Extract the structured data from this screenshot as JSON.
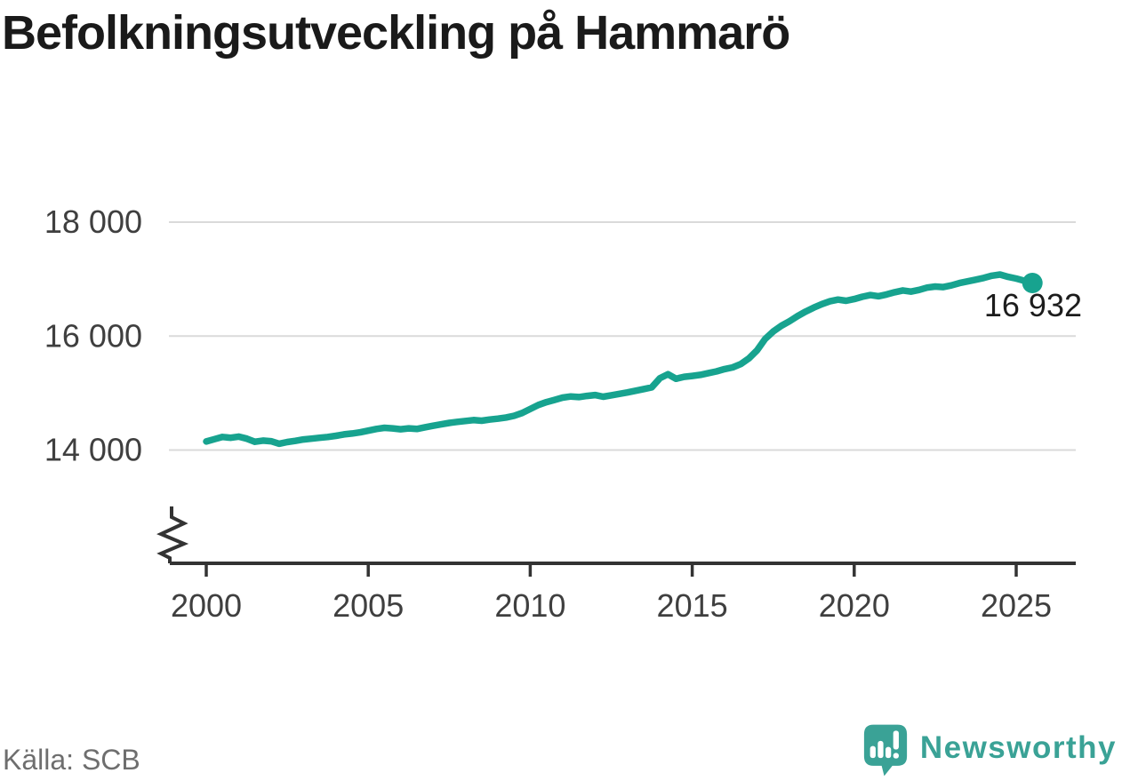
{
  "title": "Befolkningsutveckling på Hammarö",
  "source": {
    "label": "Källa: SCB"
  },
  "branding": {
    "name": "Newsworthy",
    "icon": "newsworthy-speech-bubble-barchart-icon",
    "color": "#3aa296"
  },
  "chart_data": {
    "type": "line",
    "title": "Befolkningsutveckling på Hammarö",
    "series_name": "Befolkning Hammarö",
    "xlabel": "",
    "ylabel": "",
    "grid": "horizontal",
    "legend": "none",
    "axis_break_on_y": true,
    "line_color": "#17a38f",
    "xlim": [
      2000,
      2025.5
    ],
    "ylim": [
      14000,
      18000
    ],
    "x_ticks": [
      2000,
      2005,
      2010,
      2015,
      2020,
      2025
    ],
    "x_tick_labels": [
      "2000",
      "2005",
      "2010",
      "2015",
      "2020",
      "2025"
    ],
    "y_gridlines": [
      14000,
      16000,
      18000
    ],
    "y_tick_labels": [
      "14 000",
      "16 000",
      "18 000"
    ],
    "end_label": "16 932",
    "end_value": 16932,
    "x": [
      2000.0,
      2000.25,
      2000.5,
      2000.75,
      2001.0,
      2001.25,
      2001.5,
      2001.75,
      2002.0,
      2002.25,
      2002.5,
      2002.75,
      2003.0,
      2003.25,
      2003.5,
      2003.75,
      2004.0,
      2004.25,
      2004.5,
      2004.75,
      2005.0,
      2005.25,
      2005.5,
      2005.75,
      2006.0,
      2006.25,
      2006.5,
      2006.75,
      2007.0,
      2007.25,
      2007.5,
      2007.75,
      2008.0,
      2008.25,
      2008.5,
      2008.75,
      2009.0,
      2009.25,
      2009.5,
      2009.75,
      2010.0,
      2010.25,
      2010.5,
      2010.75,
      2011.0,
      2011.25,
      2011.5,
      2011.75,
      2012.0,
      2012.25,
      2012.5,
      2012.75,
      2013.0,
      2013.25,
      2013.5,
      2013.75,
      2014.0,
      2014.25,
      2014.5,
      2014.75,
      2015.0,
      2015.25,
      2015.5,
      2015.75,
      2016.0,
      2016.25,
      2016.5,
      2016.75,
      2017.0,
      2017.25,
      2017.5,
      2017.75,
      2018.0,
      2018.25,
      2018.5,
      2018.75,
      2019.0,
      2019.25,
      2019.5,
      2019.75,
      2020.0,
      2020.25,
      2020.5,
      2020.75,
      2021.0,
      2021.25,
      2021.5,
      2021.75,
      2022.0,
      2022.25,
      2022.5,
      2022.75,
      2023.0,
      2023.25,
      2023.5,
      2023.75,
      2024.0,
      2024.25,
      2024.5,
      2024.75,
      2025.0,
      2025.25,
      2025.5
    ],
    "values": [
      14150,
      14190,
      14230,
      14215,
      14235,
      14200,
      14145,
      14165,
      14155,
      14110,
      14140,
      14160,
      14185,
      14200,
      14215,
      14230,
      14250,
      14275,
      14290,
      14310,
      14340,
      14370,
      14390,
      14380,
      14365,
      14380,
      14370,
      14400,
      14425,
      14450,
      14475,
      14495,
      14510,
      14525,
      14515,
      14535,
      14550,
      14570,
      14600,
      14650,
      14720,
      14790,
      14840,
      14880,
      14920,
      14940,
      14930,
      14950,
      14965,
      14935,
      14960,
      14985,
      15010,
      15040,
      15070,
      15100,
      15260,
      15330,
      15250,
      15285,
      15300,
      15320,
      15350,
      15380,
      15420,
      15450,
      15510,
      15610,
      15750,
      15950,
      16080,
      16180,
      16260,
      16350,
      16430,
      16500,
      16560,
      16610,
      16640,
      16620,
      16650,
      16690,
      16720,
      16700,
      16730,
      16770,
      16800,
      16780,
      16810,
      16850,
      16870,
      16860,
      16890,
      16930,
      16960,
      16990,
      17020,
      17060,
      17080,
      17040,
      17010,
      16970,
      16932
    ]
  }
}
